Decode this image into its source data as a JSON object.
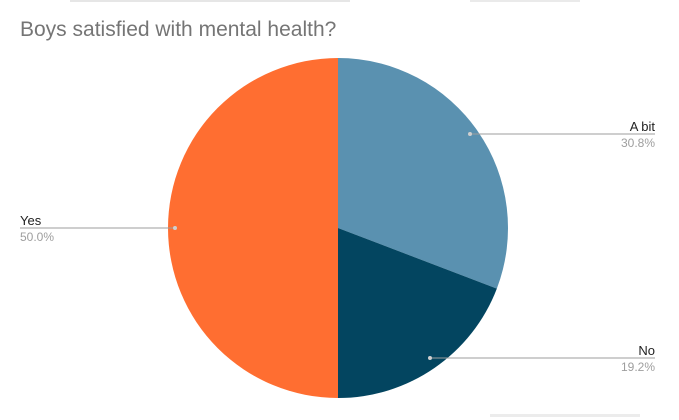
{
  "chart_data": {
    "type": "pie",
    "title": "Boys satisfied with mental health?",
    "slices": [
      {
        "label": "A bit",
        "value": 30.8,
        "pct_label": "30.8%",
        "color": "#5a91b0"
      },
      {
        "label": "No",
        "value": 19.2,
        "pct_label": "19.2%",
        "color": "#034560"
      },
      {
        "label": "Yes",
        "value": 50.0,
        "pct_label": "50.0%",
        "color": "#ff6e31"
      }
    ],
    "legend": "none",
    "label_style": "callout lines with name and percentage"
  }
}
